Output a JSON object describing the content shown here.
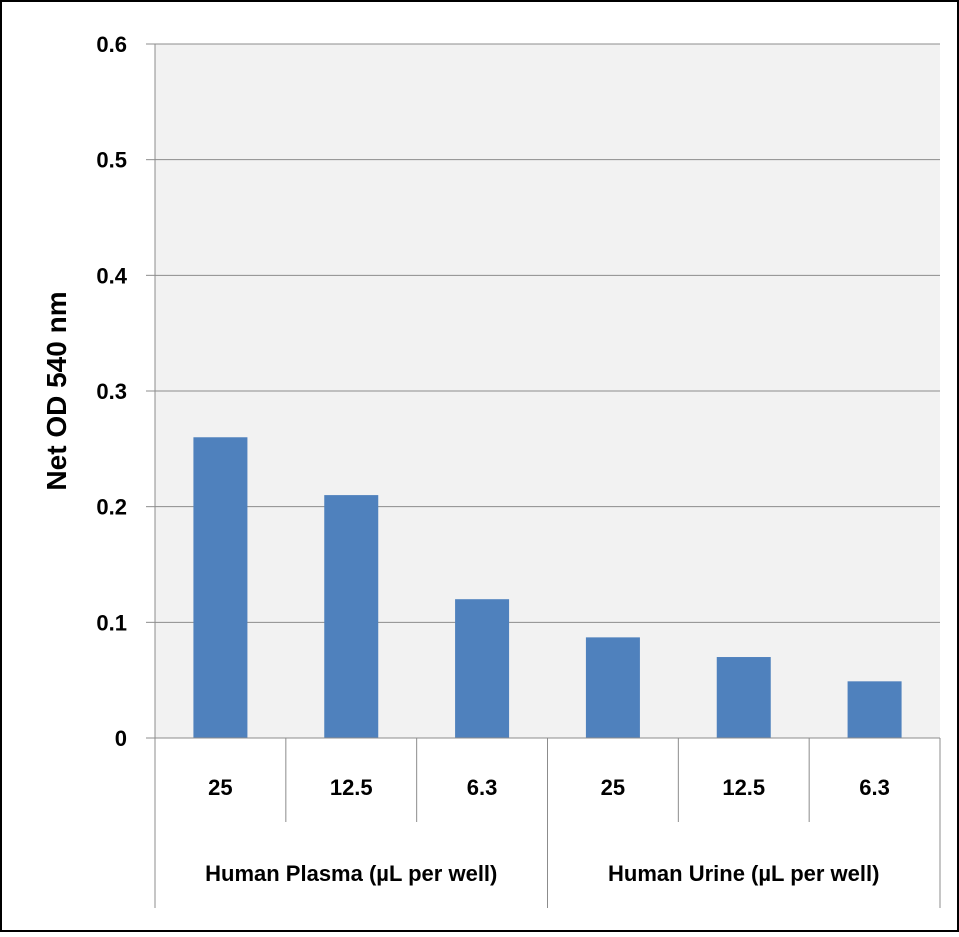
{
  "chart_data": {
    "type": "bar",
    "title": "",
    "ylabel": "Net OD 540 nm",
    "ylim": [
      0,
      0.6
    ],
    "yticks": [
      0,
      0.1,
      0.2,
      0.3,
      0.4,
      0.5,
      0.6
    ],
    "ytick_labels": [
      "0",
      "0.1",
      "0.2",
      "0.3",
      "0.4",
      "0.5",
      "0.6"
    ],
    "categories": [
      "25",
      "12.5",
      "6.3",
      "25",
      "12.5",
      "6.3"
    ],
    "groups": [
      {
        "label": "Human Plasma (µL per well)",
        "span": [
          0,
          2
        ]
      },
      {
        "label": "Human Urine (µL per well)",
        "span": [
          3,
          5
        ]
      }
    ],
    "series": [
      {
        "values": [
          0.26,
          0.21,
          0.12,
          0.087,
          0.07,
          0.049
        ]
      }
    ],
    "grid": true,
    "legend": "none",
    "colors": {
      "bar": "#4f81bd",
      "plot_background": "#f2f2f2",
      "gridline": "#8c8c8c",
      "axis": "#8c8c8c",
      "border": "#000000"
    }
  }
}
